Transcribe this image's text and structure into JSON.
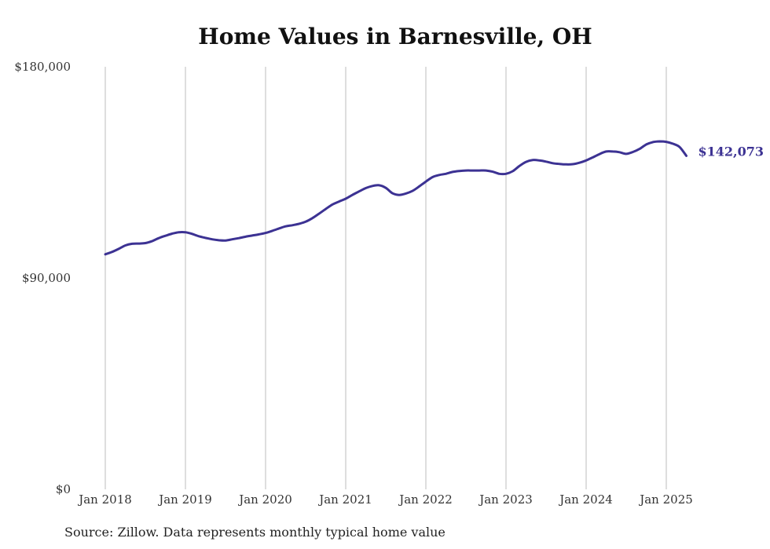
{
  "chart_data": {
    "type": "line",
    "title": "Home Values in Barnesville, OH",
    "source": "Source: Zillow. Data represents monthly typical home value",
    "ylim": [
      0,
      180000
    ],
    "yticks": [
      {
        "value": 0,
        "label": "$0"
      },
      {
        "value": 90000,
        "label": "$90,000"
      },
      {
        "value": 180000,
        "label": "$180,000"
      }
    ],
    "xlim": [
      "2018-01",
      "2025-04"
    ],
    "xticks": [
      {
        "date": "2018-01",
        "label": "Jan 2018"
      },
      {
        "date": "2019-01",
        "label": "Jan 2019"
      },
      {
        "date": "2020-01",
        "label": "Jan 2020"
      },
      {
        "date": "2021-01",
        "label": "Jan 2021"
      },
      {
        "date": "2022-01",
        "label": "Jan 2022"
      },
      {
        "date": "2023-01",
        "label": "Jan 2023"
      },
      {
        "date": "2024-01",
        "label": "Jan 2024"
      },
      {
        "date": "2025-01",
        "label": "Jan 2025"
      }
    ],
    "grid": {
      "vertical": true,
      "horizontal": false
    },
    "line_color": "#3c3293",
    "grid_color": "#bdbdbd",
    "end_label": "$142,073",
    "series": [
      {
        "x": [
          "2018-01",
          "2018-02",
          "2018-03",
          "2018-04",
          "2018-05",
          "2018-06",
          "2018-07",
          "2018-08",
          "2018-09",
          "2018-10",
          "2018-11",
          "2018-12",
          "2019-01",
          "2019-02",
          "2019-03",
          "2019-04",
          "2019-05",
          "2019-06",
          "2019-07",
          "2019-08",
          "2019-09",
          "2019-10",
          "2019-11",
          "2019-12",
          "2020-01",
          "2020-02",
          "2020-03",
          "2020-04",
          "2020-05",
          "2020-06",
          "2020-07",
          "2020-08",
          "2020-09",
          "2020-10",
          "2020-11",
          "2020-12",
          "2021-01",
          "2021-02",
          "2021-03",
          "2021-04",
          "2021-05",
          "2021-06",
          "2021-07",
          "2021-08",
          "2021-09",
          "2021-10",
          "2021-11",
          "2021-12",
          "2022-01",
          "2022-02",
          "2022-03",
          "2022-04",
          "2022-05",
          "2022-06",
          "2022-07",
          "2022-08",
          "2022-09",
          "2022-10",
          "2022-11",
          "2022-12",
          "2023-01",
          "2023-02",
          "2023-03",
          "2023-04",
          "2023-05",
          "2023-06",
          "2023-07",
          "2023-08",
          "2023-09",
          "2023-10",
          "2023-11",
          "2023-12",
          "2024-01",
          "2024-02",
          "2024-03",
          "2024-04",
          "2024-05",
          "2024-06",
          "2024-07",
          "2024-08",
          "2024-09",
          "2024-10",
          "2024-11",
          "2024-12",
          "2025-01",
          "2025-02",
          "2025-03",
          "2025-04"
        ],
        "values": [
          100100,
          101100,
          102400,
          103900,
          104600,
          104700,
          104900,
          105700,
          107000,
          108000,
          108900,
          109500,
          109500,
          108800,
          107800,
          107100,
          106500,
          106100,
          106000,
          106500,
          107000,
          107600,
          108100,
          108600,
          109200,
          110100,
          111100,
          112000,
          112500,
          113100,
          114000,
          115500,
          117400,
          119400,
          121300,
          122600,
          123800,
          125400,
          126900,
          128300,
          129200,
          129500,
          128400,
          126100,
          125400,
          126000,
          127100,
          129000,
          131100,
          133000,
          133900,
          134400,
          135200,
          135600,
          135800,
          135800,
          135800,
          135800,
          135300,
          134400,
          134400,
          135500,
          137700,
          139500,
          140300,
          140100,
          139600,
          138900,
          138600,
          138400,
          138500,
          139100,
          140100,
          141400,
          142800,
          143900,
          143900,
          143600,
          142900,
          143700,
          145000,
          146900,
          147900,
          148200,
          148000,
          147200,
          145800,
          142073
        ]
      }
    ]
  }
}
